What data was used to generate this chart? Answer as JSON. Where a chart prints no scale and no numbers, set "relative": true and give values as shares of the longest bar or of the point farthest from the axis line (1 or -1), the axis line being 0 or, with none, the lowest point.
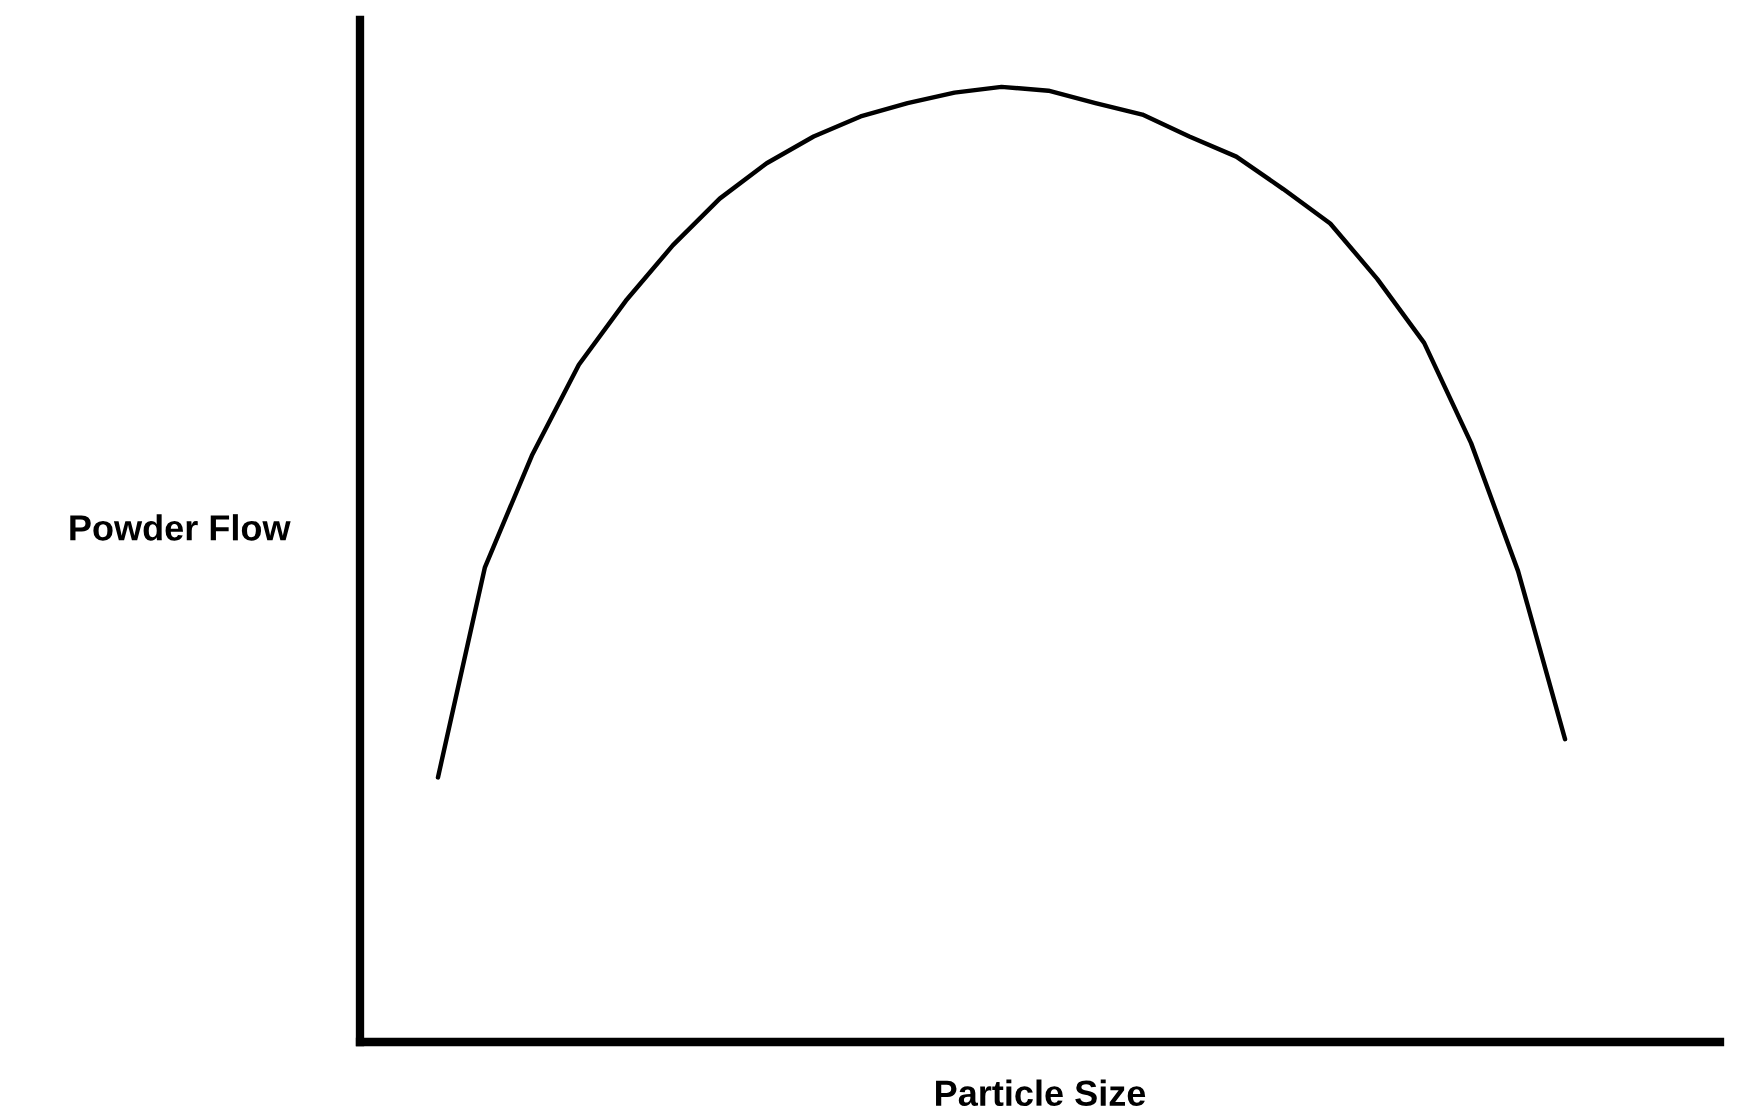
{
  "chart_data": {
    "type": "line",
    "relative": true,
    "xlabel": "Particle Size",
    "ylabel": "Powder Flow",
    "categories": [
      null,
      null,
      null,
      null,
      null,
      null,
      null,
      null,
      null,
      null,
      null,
      null,
      null,
      null,
      null,
      null,
      null,
      null,
      null,
      null,
      null,
      null,
      null,
      null,
      null
    ],
    "series": [
      {
        "color": "#000000",
        "values": [
          0.277,
          0.497,
          0.614,
          0.709,
          0.776,
          0.834,
          0.883,
          0.92,
          0.948,
          0.969,
          0.983,
          0.994,
          1.0,
          0.996,
          0.983,
          0.971,
          0.948,
          0.927,
          0.893,
          0.857,
          0.799,
          0.732,
          0.627,
          0.493,
          0.317
        ]
      }
    ],
    "grid": false,
    "legend": false,
    "marker": "none",
    "line_style": "solid"
  }
}
